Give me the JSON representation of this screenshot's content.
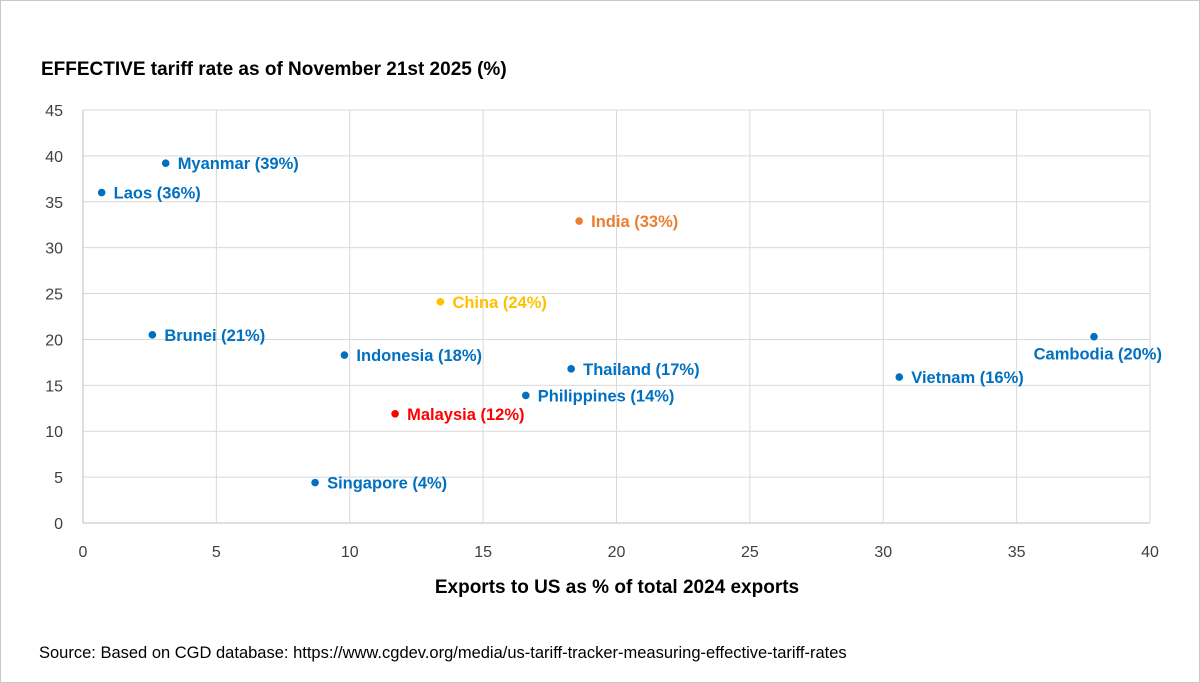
{
  "chart_data": {
    "type": "scatter",
    "title": "EFFECTIVE tariff rate as of November 21st 2025 (%)",
    "xlabel": "Exports to US as % of total 2024 exports",
    "ylabel": "",
    "xlim": [
      0,
      40
    ],
    "ylim": [
      0,
      45
    ],
    "x_ticks": [
      "0",
      "5",
      "10",
      "15",
      "20",
      "25",
      "30",
      "35",
      "40"
    ],
    "y_ticks": [
      "0",
      "5",
      "10",
      "15",
      "20",
      "25",
      "30",
      "35",
      "40",
      "45"
    ],
    "grid": true,
    "points": [
      {
        "label": "Myanmar (39%)",
        "x": 3.1,
        "y": 39.2,
        "color": "#0070C0"
      },
      {
        "label": "Laos (36%)",
        "x": 0.7,
        "y": 36.0,
        "color": "#0070C0"
      },
      {
        "label": "India (33%)",
        "x": 18.6,
        "y": 32.9,
        "color": "#ED7D31"
      },
      {
        "label": "China (24%)",
        "x": 13.4,
        "y": 24.1,
        "color": "#FFC000"
      },
      {
        "label": "Brunei (21%)",
        "x": 2.6,
        "y": 20.5,
        "color": "#0070C0"
      },
      {
        "label": "Indonesia (18%)",
        "x": 9.8,
        "y": 18.3,
        "color": "#0070C0"
      },
      {
        "label": "Thailand (17%)",
        "x": 18.3,
        "y": 16.8,
        "color": "#0070C0"
      },
      {
        "label": "Cambodia (20%)",
        "x": 37.9,
        "y": 20.3,
        "color": "#0070C0"
      },
      {
        "label": "Vietnam (16%)",
        "x": 30.6,
        "y": 15.9,
        "color": "#0070C0"
      },
      {
        "label": "Philippines (14%)",
        "x": 16.6,
        "y": 13.9,
        "color": "#0070C0"
      },
      {
        "label": "Malaysia (12%)",
        "x": 11.7,
        "y": 11.9,
        "color": "#FF0000"
      },
      {
        "label": "Singapore (4%)",
        "x": 8.7,
        "y": 4.4,
        "color": "#0070C0"
      }
    ]
  },
  "source": "Source: Based on CGD database: https://www.cgdev.org/media/us-tariff-tracker-measuring-effective-tariff-rates"
}
